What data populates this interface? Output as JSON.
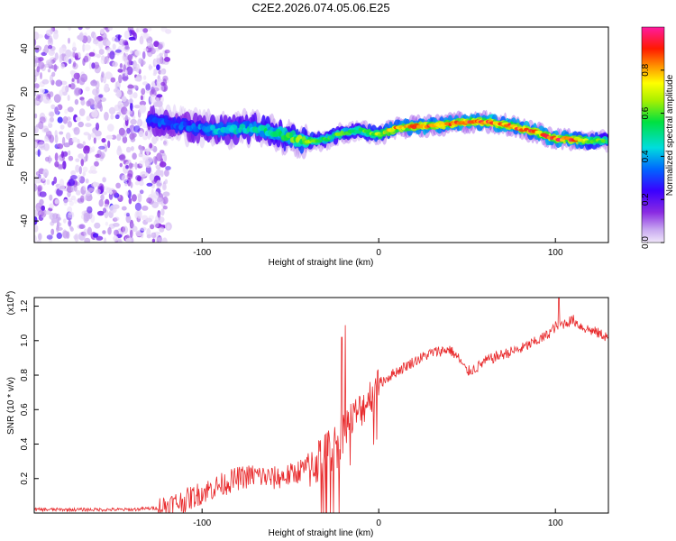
{
  "title": "C2E2.2026.074.05.06.E25",
  "colorbar": {
    "label": "Normalized spectral amplitude",
    "ticks": [
      "0.0",
      "0.2",
      "0.4",
      "0.6",
      "0.8"
    ],
    "tick_values": [
      0.0,
      0.2,
      0.4,
      0.6,
      0.8
    ],
    "range": [
      0,
      1
    ]
  },
  "chart_data": [
    {
      "type": "heatmap",
      "name": "spectrogram",
      "title": "C2E2.2026.074.05.06.E25",
      "xlabel": "Height of straight line (km)",
      "ylabel": "Frequency (Hz)",
      "xlim": [
        -195,
        130
      ],
      "ylim": [
        -50,
        50
      ],
      "x_ticks": [
        -100,
        0,
        100
      ],
      "x_tick_labels": [
        "-100",
        "0",
        "100"
      ],
      "y_ticks": [
        -40,
        -20,
        0,
        20,
        40
      ],
      "y_tick_labels": [
        "-40",
        "-20",
        "0",
        "20",
        "40"
      ],
      "colormap": "rainbow (white-purple-blue-cyan-green-yellow-red-magenta)",
      "noise_region_x": [
        -195,
        -125
      ],
      "ridge": {
        "x": [
          -130,
          -110,
          -90,
          -70,
          -55,
          -40,
          -30,
          -20,
          -10,
          0,
          10,
          20,
          30,
          40,
          50,
          60,
          70,
          80,
          90,
          100,
          110,
          120,
          130
        ],
        "frequency": [
          7,
          4,
          2,
          3,
          0,
          -3,
          -2,
          1,
          2,
          0,
          3,
          4,
          4,
          5,
          6,
          6,
          5,
          3,
          1,
          -2,
          -2,
          -3,
          -3
        ],
        "amplitude": [
          0.35,
          0.35,
          0.45,
          0.5,
          0.6,
          0.7,
          0.6,
          0.65,
          0.6,
          0.7,
          0.85,
          0.9,
          0.92,
          0.9,
          0.95,
          0.95,
          0.9,
          0.9,
          0.9,
          0.95,
          0.92,
          0.7,
          0.6
        ]
      }
    },
    {
      "type": "line",
      "name": "snr",
      "xlabel": "Height of straight line (km)",
      "ylabel": "SNR (10 * v/v)",
      "y_scale_label": "(x10",
      "y_scale_exponent": "4",
      "y_scale_suffix": ")",
      "xlim": [
        -195,
        130
      ],
      "ylim": [
        0,
        1.25
      ],
      "x_ticks": [
        -100,
        0,
        100
      ],
      "x_tick_labels": [
        "-100",
        "0",
        "100"
      ],
      "y_ticks": [
        0.2,
        0.4,
        0.6,
        0.8,
        1.0,
        1.2
      ],
      "y_tick_labels": [
        "0.2",
        "0.4",
        "0.6",
        "0.8",
        "1.0",
        "1.2"
      ],
      "line_color": "#e8282a",
      "series": [
        {
          "name": "SNR",
          "x": [
            -195,
            -140,
            -125,
            -110,
            -100,
            -90,
            -80,
            -70,
            -60,
            -50,
            -40,
            -35,
            -30,
            -25,
            -22,
            -20,
            -15,
            -10,
            -5,
            0,
            10,
            20,
            30,
            40,
            45,
            50,
            55,
            60,
            70,
            80,
            90,
            95,
            100,
            105,
            110,
            115,
            120,
            130
          ],
          "y": [
            0.02,
            0.02,
            0.03,
            0.07,
            0.12,
            0.16,
            0.2,
            0.22,
            0.2,
            0.22,
            0.27,
            0.3,
            0.34,
            0.38,
            0.42,
            0.5,
            0.55,
            0.6,
            0.68,
            0.75,
            0.82,
            0.88,
            0.93,
            0.95,
            0.9,
            0.82,
            0.84,
            0.88,
            0.92,
            0.95,
            1.0,
            1.03,
            1.08,
            1.1,
            1.12,
            1.08,
            1.06,
            1.02
          ]
        }
      ],
      "noise_amplitude": [
        {
          "from": -195,
          "to": -125,
          "amp": 0.01
        },
        {
          "from": -125,
          "to": -40,
          "amp": 0.07
        },
        {
          "from": -40,
          "to": -20,
          "amp": 0.18
        },
        {
          "from": -20,
          "to": 0,
          "amp": 0.14
        },
        {
          "from": 0,
          "to": 130,
          "amp": 0.04
        }
      ],
      "spikes": [
        {
          "x": -19,
          "y": 1.09
        },
        {
          "x": -21,
          "y": 1.02
        },
        {
          "x": 102,
          "y": 1.25
        }
      ]
    }
  ]
}
